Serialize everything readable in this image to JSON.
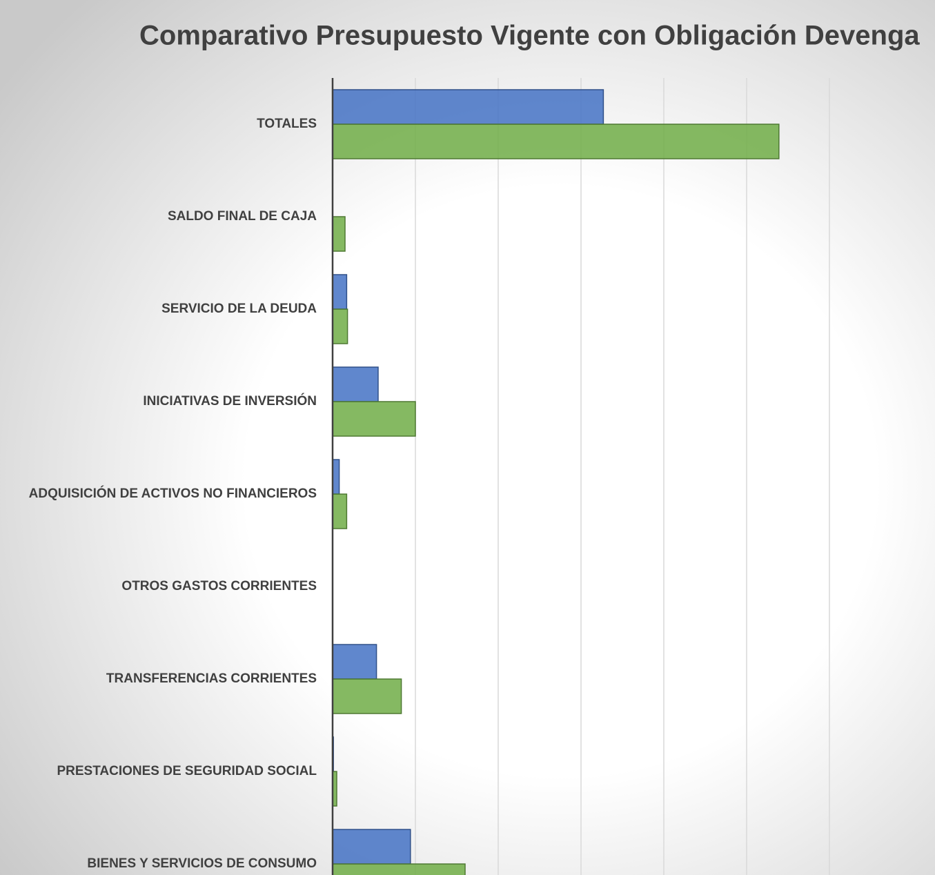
{
  "chart_data": {
    "type": "bar",
    "orientation": "horizontal",
    "title": "Comparativo Presupuesto Vigente con Obligación Devenga",
    "categories": [
      "TOTALES",
      "SALDO FINAL DE CAJA",
      "SERVICIO DE LA DEUDA",
      "INICIATIVAS DE INVERSIÓN",
      "ADQUISICIÓN DE ACTIVOS NO FINANCIEROS",
      "OTROS GASTOS CORRIENTES",
      "TRANSFERENCIAS CORRIENTES",
      "PRESTACIONES DE SEGURIDAD SOCIAL",
      "BIENES Y SERVICIOS DE CONSUMO"
    ],
    "series": [
      {
        "color": "#4472c4",
        "values": [
          3.27,
          0,
          0.17,
          0.55,
          0.08,
          0,
          0.53,
          0.01,
          0.94
        ]
      },
      {
        "color": "#70ad47",
        "values": [
          5.39,
          0.15,
          0.18,
          1.0,
          0.17,
          0,
          0.83,
          0.05,
          1.6
        ]
      }
    ],
    "xlim": [
      0,
      7
    ],
    "xticks": [
      0,
      1,
      2,
      3,
      4,
      5,
      6
    ],
    "grid": true
  }
}
